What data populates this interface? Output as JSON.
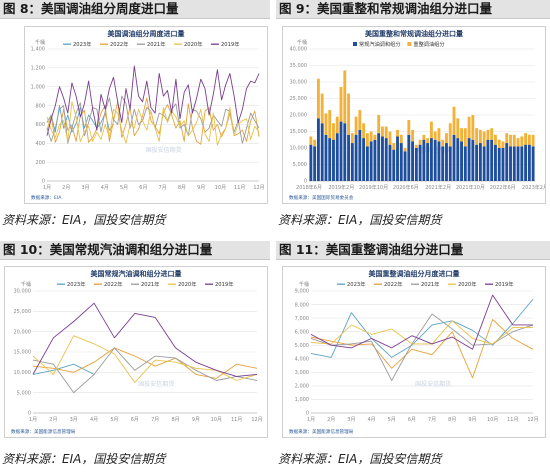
{
  "panels": [
    {
      "id": "p8",
      "header": "图 8：美国调油组分周度进口量",
      "footer": "资料来源：EIA，国投安信期货",
      "chart_data": {
        "type": "line",
        "title": "美国调油组分周度进口量",
        "unit": "千桶",
        "ylim": [
          0,
          1400
        ],
        "yticks": [
          "0",
          "200",
          "400",
          "600",
          "800",
          "1,000",
          "1,200",
          "1,400"
        ],
        "xticks": [
          "1月",
          "2月",
          "3月",
          "4月",
          "5月",
          "6月",
          "7月",
          "8月",
          "9月",
          "10月",
          "11月",
          "12月"
        ],
        "x_count": 52,
        "series": [
          {
            "name": "2023年",
            "color": "#5ba3c7",
            "values": [
              620,
              700,
              520,
              800,
              560,
              700,
              520,
              610,
              780,
              560,
              700,
              640,
              560,
              620,
              720,
              540,
              600
            ]
          },
          {
            "name": "2022年",
            "color": "#e8a13a",
            "values": [
              540,
              690,
              410,
              520,
              760,
              540,
              590,
              420,
              690,
              750,
              410,
              460,
              560,
              720,
              800,
              420,
              640,
              840,
              460,
              610,
              780,
              480,
              550,
              690,
              880,
              640,
              580,
              500,
              720,
              810,
              700,
              560,
              640,
              420,
              820,
              560,
              420,
              390,
              740,
              780,
              540,
              600,
              470,
              560,
              720,
              480,
              500,
              540,
              420,
              640,
              740,
              470
            ]
          },
          {
            "name": "2021年",
            "color": "#9a9a9a",
            "values": [
              560,
              420,
              560,
              760,
              800,
              400,
              560,
              720,
              830,
              480,
              620,
              780,
              760,
              520,
              740,
              880,
              650,
              600,
              900,
              820,
              560,
              760,
              600,
              640,
              780,
              740,
              560,
              720,
              700,
              640,
              760,
              820,
              560,
              600,
              480,
              760,
              740,
              660,
              520,
              560,
              700,
              640,
              580,
              760,
              740,
              520,
              640,
              400,
              560,
              720,
              640,
              560
            ]
          },
          {
            "name": "2020年",
            "color": "#e8c24a",
            "values": [
              680,
              540,
              460,
              600,
              640,
              420,
              840,
              680,
              420,
              520,
              580,
              420,
              520,
              440,
              600,
              460,
              760,
              720,
              540,
              400,
              600,
              560,
              760,
              640,
              540,
              740,
              560,
              420,
              780,
              620,
              740,
              680,
              580,
              640,
              480,
              540,
              620,
              760,
              500,
              420,
              720,
              380,
              500,
              560,
              780,
              480,
              600,
              640,
              660,
              440,
              580,
              520
            ]
          },
          {
            "name": "2019年",
            "color": "#7a3d8f",
            "values": [
              480,
              660,
              800,
              1000,
              880,
              720,
              1040,
              900,
              680,
              820,
              1060,
              760,
              540,
              920,
              760,
              980,
              1100,
              840,
              620,
              980,
              760,
              1220,
              900,
              840,
              1060,
              780,
              720,
              1140,
              900,
              960,
              720,
              1080,
              660,
              940,
              1020,
              720,
              880,
              1080,
              980,
              700,
              920,
              1180,
              860,
              1020,
              1140,
              900,
              620,
              760,
              980,
              1060,
              1040,
              1140
            ]
          }
        ],
        "source_note": "数据来源：EIA",
        "watermark": "国投安信期货"
      }
    },
    {
      "id": "p9",
      "header": "图 9：美国重整和常规调油组分进口量",
      "footer": "资料来源：EIA，国投安信期货",
      "chart_data": {
        "type": "bar",
        "stacked": true,
        "title": "美国重整和常规调油组分进口量",
        "unit": "千桶",
        "ylim": [
          0,
          40000
        ],
        "yticks": [
          "0",
          "5,000",
          "10,000",
          "15,000",
          "20,000",
          "25,000",
          "30,000",
          "35,000",
          "40,000"
        ],
        "xticks": [
          "2018年6月",
          "2019年2月",
          "2019年10月",
          "2020年6月",
          "2021年2月",
          "2021年10月",
          "2022年6月",
          "2023年2月"
        ],
        "series": [
          {
            "name": "常规汽油调和组分",
            "color": "#1f4e9c",
            "values": [
              11000,
              10500,
              19000,
              17500,
              14000,
              13000,
              12500,
              14500,
              18000,
              17500,
              14000,
              11500,
              14000,
              15500,
              13000,
              10500,
              12000,
              12500,
              14500,
              13500,
              13000,
              11000,
              9500,
              13500,
              11500,
              9000,
              14000,
              12000,
              10000,
              11000,
              12500,
              11500,
              13000,
              12500,
              12000,
              10500,
              11500,
              10500,
              14000,
              13000,
              12000,
              10500,
              13000,
              12500,
              11000,
              11500,
              10500,
              12500,
              12500,
              11000,
              10000,
              10000,
              11500,
              10500,
              10500,
              10500,
              10500,
              11000,
              11000,
              10500
            ]
          },
          {
            "name": "重整调油组分",
            "color": "#f2b23a",
            "values": [
              2500,
              2000,
              12000,
              9000,
              6500,
              8500,
              5000,
              5000,
              10500,
              16000,
              12500,
              3000,
              5500,
              6000,
              4500,
              4000,
              3000,
              1500,
              5500,
              3000,
              3500,
              4000,
              2000,
              2000,
              2500,
              1000,
              4500,
              3500,
              1000,
              1500,
              1500,
              1500,
              5000,
              2500,
              4000,
              2000,
              3000,
              7000,
              8500,
              6000,
              4000,
              5500,
              6500,
              7500,
              5000,
              4000,
              4500,
              3000,
              3500,
              3000,
              2500,
              2000,
              3000,
              3500,
              3500,
              2500,
              3000,
              3500,
              3000,
              3500
            ]
          }
        ],
        "source_note": "数据来源：美国国际贸易委员会",
        "watermark": "国投安信期货"
      }
    },
    {
      "id": "p10",
      "header": "图 10：美国常规汽油调和组分进口量",
      "footer": "资料来源：EIA，国投安信期货",
      "chart_data": {
        "type": "line",
        "title": "美国常规汽油调和组分进口量",
        "unit": "千桶",
        "ylim": [
          0,
          30000
        ],
        "yticks": [
          "0",
          "5,000",
          "10,000",
          "15,000",
          "20,000",
          "25,000",
          "30,000"
        ],
        "xticks": [
          "1月",
          "2月",
          "3月",
          "4月",
          "5月",
          "6月",
          "7月",
          "8月",
          "9月",
          "10月",
          "11月",
          "12月"
        ],
        "series": [
          {
            "name": "2023年",
            "color": "#5ba3c7",
            "values": [
              9500,
              10500,
              12000,
              9500
            ]
          },
          {
            "name": "2022年",
            "color": "#e8a13a",
            "values": [
              11500,
              11000,
              10000,
              12500,
              16000,
              14000,
              11500,
              13500,
              9500,
              8500,
              12000,
              11000
            ]
          },
          {
            "name": "2021年",
            "color": "#9a9a9a",
            "values": [
              13000,
              12000,
              5000,
              9500,
              16000,
              10500,
              14000,
              13500,
              10500,
              8000,
              9000,
              8000
            ]
          },
          {
            "name": "2020年",
            "color": "#e8c24a",
            "values": [
              14000,
              9500,
              19000,
              17000,
              14500,
              7500,
              13000,
              12500,
              11000,
              10500,
              8000,
              9500
            ]
          },
          {
            "name": "2019年",
            "color": "#7a3d8f",
            "values": [
              9500,
              18500,
              22500,
              27000,
              18500,
              24500,
              23500,
              16000,
              12500,
              10500,
              9000,
              9500
            ]
          }
        ],
        "source_note": "数据来源：美国能源信息管理局",
        "watermark": "国投安信期货"
      }
    },
    {
      "id": "p11",
      "header": "图 11：美国重整调油组分进口量",
      "footer": "资料来源：EIA，国投安信期货",
      "chart_data": {
        "type": "line",
        "title": "美国重整调油组分月度进口量",
        "unit": "千桶",
        "ylim": [
          0,
          9000
        ],
        "yticks": [
          "0",
          "1,000",
          "2,000",
          "3,000",
          "4,000",
          "5,000",
          "6,000",
          "7,000",
          "8,000",
          "9,000"
        ],
        "xticks": [
          "1月",
          "2月",
          "3月",
          "4月",
          "5月",
          "6月",
          "7月",
          "8月",
          "9月",
          "10月",
          "11月",
          "12月"
        ],
        "series": [
          {
            "name": "2023年",
            "color": "#5ba3c7",
            "values": [
              4400,
              4100,
              7400,
              5500,
              4100,
              5000,
              6500,
              6800,
              6100,
              5000,
              6600,
              8400
            ]
          },
          {
            "name": "2022年",
            "color": "#e8a13a",
            "values": [
              5600,
              5300,
              5000,
              5100,
              3300,
              4700,
              4300,
              6000,
              2600,
              6900,
              5500,
              4700
            ]
          },
          {
            "name": "2021年",
            "color": "#9a9a9a",
            "values": [
              5500,
              5000,
              5100,
              5300,
              2400,
              5100,
              7300,
              6200,
              5000,
              5100,
              6000,
              6500
            ]
          },
          {
            "name": "2020年",
            "color": "#e8c24a",
            "values": [
              5200,
              5100,
              6500,
              5800,
              6200,
              5100,
              5100,
              6800,
              5500,
              5100,
              6300,
              6300
            ]
          },
          {
            "name": "2019年",
            "color": "#7a3d8f",
            "values": [
              5800,
              5000,
              4800,
              5500,
              4800,
              5700,
              5100,
              5600,
              4700,
              8700,
              6500,
              6500
            ]
          }
        ],
        "source_note": "数据来源：美国能源信息管理局",
        "watermark": "国投安信期货"
      }
    }
  ]
}
